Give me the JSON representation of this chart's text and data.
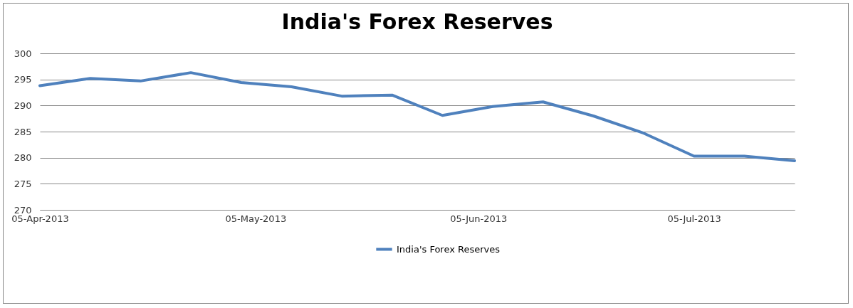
{
  "chart_data": {
    "type": "line",
    "title": "India's Forex Reserves",
    "x": [
      "2013-04-05",
      "2013-04-12",
      "2013-04-19",
      "2013-04-26",
      "2013-05-03",
      "2013-05-10",
      "2013-05-17",
      "2013-05-24",
      "2013-05-31",
      "2013-06-07",
      "2013-06-14",
      "2013-06-21",
      "2013-06-28",
      "2013-07-05",
      "2013-07-12",
      "2013-07-19"
    ],
    "series": [
      {
        "name": "India's Forex Reserves",
        "color": "#4f81bd",
        "values": [
          293.8,
          295.2,
          294.7,
          296.3,
          294.4,
          293.6,
          291.8,
          292.0,
          288.1,
          289.8,
          290.7,
          288.0,
          284.7,
          280.3,
          280.3,
          279.4
        ]
      }
    ],
    "xlim": [
      "2013-04-05",
      "2013-07-19"
    ],
    "xticks": [
      {
        "value": "2013-04-05",
        "label": "05-Apr-2013"
      },
      {
        "value": "2013-05-05",
        "label": "05-May-2013"
      },
      {
        "value": "2013-06-05",
        "label": "05-Jun-2013"
      },
      {
        "value": "2013-07-05",
        "label": "05-Jul-2013"
      }
    ],
    "ylim": [
      270,
      300
    ],
    "yticks": [
      270,
      275,
      280,
      285,
      290,
      295,
      300
    ],
    "grid": "y",
    "legend": "bottom",
    "marker": "none",
    "line_style": "solid"
  }
}
